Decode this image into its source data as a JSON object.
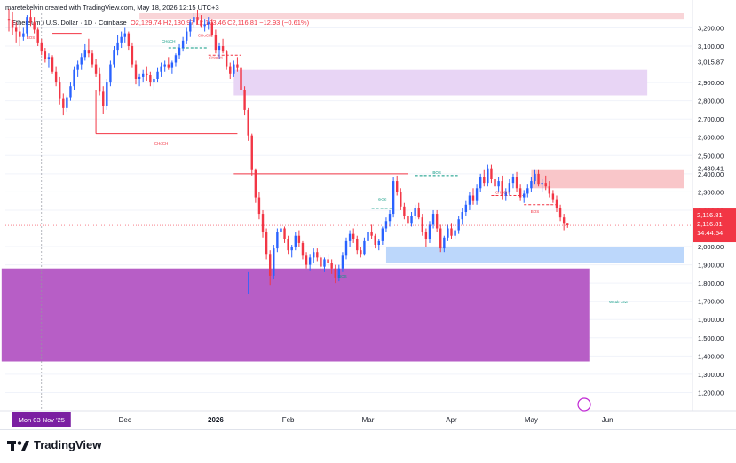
{
  "header": {
    "created_by": "maretekelvin created with TradingView.com, May 18, 2026 12:15 UTC+3",
    "symbol": "Ethereum / U.S. Dollar · 1D · Coinbase",
    "ohlc": "O2,129.74  H2,130.97  L2,103.46  C2,116.81  −12.93 (−0.61%)"
  },
  "footer": {
    "brand": "TradingView"
  },
  "chart_data": {
    "type": "candlestick",
    "y_ticks": [
      3200,
      3100,
      3015.87,
      2900,
      2800,
      2700,
      2600,
      2500,
      2430.41,
      2400,
      2300,
      2200,
      2116.81,
      2000,
      1900,
      1800,
      1700,
      1600,
      1500,
      1400,
      1300,
      1200
    ],
    "x_ticks": [
      "Dec",
      "2026",
      "Feb",
      "Mar",
      "Apr",
      "May",
      "Jun"
    ],
    "crosshair_date": "Mon 03 Nov '25",
    "last_price": 2116.81,
    "last_price_labels": [
      "2,116.81",
      "2,116.81",
      "14:44:54"
    ],
    "ylim": [
      1100,
      3280
    ],
    "start_date": "2025-10-20",
    "candles": [
      [
        3250,
        3305,
        3180,
        3240
      ],
      [
        3240,
        3290,
        3160,
        3200
      ],
      [
        3200,
        3230,
        3120,
        3180
      ],
      [
        3180,
        3220,
        3100,
        3150
      ],
      [
        3150,
        3200,
        3130,
        3170
      ],
      [
        3170,
        3270,
        3150,
        3260
      ],
      [
        3260,
        3300,
        3210,
        3230
      ],
      [
        3230,
        3260,
        3170,
        3190
      ],
      [
        3190,
        3200,
        3100,
        3120
      ],
      [
        3120,
        3140,
        3050,
        3070
      ],
      [
        3070,
        3090,
        3010,
        3030
      ],
      [
        3030,
        3060,
        2980,
        3040
      ],
      [
        3040,
        3050,
        2950,
        2960
      ],
      [
        2960,
        2990,
        2880,
        2900
      ],
      [
        2900,
        2930,
        2780,
        2810
      ],
      [
        2810,
        2840,
        2720,
        2760
      ],
      [
        2760,
        2830,
        2740,
        2820
      ],
      [
        2820,
        2900,
        2800,
        2880
      ],
      [
        2880,
        2990,
        2860,
        2970
      ],
      [
        2970,
        3020,
        2930,
        3000
      ],
      [
        3000,
        3060,
        2970,
        3040
      ],
      [
        3040,
        3110,
        3020,
        3080
      ],
      [
        3080,
        3140,
        3040,
        3060
      ],
      [
        3060,
        3080,
        2980,
        3000
      ],
      [
        3000,
        3030,
        2930,
        2950
      ],
      [
        2950,
        2980,
        2830,
        2850
      ],
      [
        2850,
        2880,
        2730,
        2770
      ],
      [
        2770,
        2920,
        2750,
        2900
      ],
      [
        2900,
        3020,
        2880,
        3000
      ],
      [
        3000,
        3100,
        2980,
        3080
      ],
      [
        3080,
        3160,
        3050,
        3120
      ],
      [
        3120,
        3180,
        3090,
        3150
      ],
      [
        3150,
        3200,
        3120,
        3170
      ],
      [
        3170,
        3180,
        3080,
        3100
      ],
      [
        3100,
        3120,
        2980,
        3000
      ],
      [
        3000,
        3020,
        2890,
        2920
      ],
      [
        2920,
        2950,
        2880,
        2930
      ],
      [
        2930,
        2970,
        2900,
        2950
      ],
      [
        2950,
        2990,
        2910,
        2940
      ],
      [
        2940,
        2960,
        2880,
        2900
      ],
      [
        2900,
        2930,
        2860,
        2920
      ],
      [
        2920,
        2980,
        2900,
        2960
      ],
      [
        2960,
        3010,
        2930,
        2990
      ],
      [
        2990,
        3020,
        2960,
        3000
      ],
      [
        3000,
        3040,
        2970,
        2980
      ],
      [
        2980,
        3020,
        2950,
        3010
      ],
      [
        3010,
        3060,
        2990,
        3050
      ],
      [
        3050,
        3110,
        3030,
        3090
      ],
      [
        3090,
        3150,
        3070,
        3130
      ],
      [
        3130,
        3200,
        3110,
        3180
      ],
      [
        3180,
        3250,
        3150,
        3230
      ],
      [
        3230,
        3280,
        3200,
        3260
      ],
      [
        3260,
        3300,
        3220,
        3240
      ],
      [
        3240,
        3270,
        3200,
        3210
      ],
      [
        3210,
        3250,
        3180,
        3220
      ],
      [
        3220,
        3260,
        3190,
        3230
      ],
      [
        3230,
        3250,
        3150,
        3160
      ],
      [
        3160,
        3190,
        3060,
        3080
      ],
      [
        3080,
        3120,
        3030,
        3100
      ],
      [
        3100,
        3140,
        3060,
        3070
      ],
      [
        3070,
        3080,
        2970,
        2990
      ],
      [
        2990,
        3010,
        2920,
        2950
      ],
      [
        2950,
        3020,
        2930,
        3000
      ],
      [
        3000,
        3040,
        2960,
        2980
      ],
      [
        2980,
        3000,
        2830,
        2860
      ],
      [
        2860,
        2880,
        2720,
        2750
      ],
      [
        2750,
        2760,
        2580,
        2610
      ],
      [
        2610,
        2620,
        2390,
        2420
      ],
      [
        2420,
        2430,
        2240,
        2270
      ],
      [
        2270,
        2300,
        2150,
        2180
      ],
      [
        2180,
        2200,
        2050,
        2080
      ],
      [
        2080,
        2100,
        1930,
        1960
      ],
      [
        1960,
        1980,
        1790,
        1840
      ],
      [
        1840,
        2010,
        1820,
        1990
      ],
      [
        1990,
        2100,
        1970,
        2080
      ],
      [
        2080,
        2130,
        2050,
        2100
      ],
      [
        2100,
        2110,
        2020,
        2040
      ],
      [
        2040,
        2060,
        1960,
        1980
      ],
      [
        1980,
        2010,
        1940,
        2000
      ],
      [
        2000,
        2080,
        1980,
        2060
      ],
      [
        2060,
        2090,
        2000,
        2020
      ],
      [
        2020,
        2030,
        1930,
        1950
      ],
      [
        1950,
        1970,
        1880,
        1900
      ],
      [
        1900,
        1960,
        1870,
        1940
      ],
      [
        1940,
        1990,
        1910,
        1970
      ],
      [
        1970,
        1990,
        1920,
        1940
      ],
      [
        1940,
        1950,
        1870,
        1890
      ],
      [
        1890,
        1940,
        1860,
        1930
      ],
      [
        1930,
        1960,
        1890,
        1910
      ],
      [
        1910,
        1930,
        1850,
        1880
      ],
      [
        1880,
        1900,
        1800,
        1830
      ],
      [
        1830,
        1900,
        1810,
        1880
      ],
      [
        1880,
        1970,
        1860,
        1950
      ],
      [
        1950,
        2050,
        1930,
        2030
      ],
      [
        2030,
        2090,
        2000,
        2070
      ],
      [
        2070,
        2100,
        2020,
        2040
      ],
      [
        2040,
        2060,
        1960,
        1980
      ],
      [
        1980,
        2000,
        1940,
        1960
      ],
      [
        1960,
        2050,
        1950,
        2030
      ],
      [
        2030,
        2100,
        2010,
        2080
      ],
      [
        2080,
        2120,
        2040,
        2060
      ],
      [
        2060,
        2070,
        1990,
        2010
      ],
      [
        2010,
        2040,
        1980,
        2030
      ],
      [
        2030,
        2110,
        2010,
        2100
      ],
      [
        2100,
        2160,
        2080,
        2140
      ],
      [
        2140,
        2200,
        2110,
        2180
      ],
      [
        2180,
        2380,
        2160,
        2360
      ],
      [
        2360,
        2390,
        2280,
        2300
      ],
      [
        2300,
        2320,
        2200,
        2220
      ],
      [
        2220,
        2240,
        2150,
        2170
      ],
      [
        2170,
        2200,
        2100,
        2130
      ],
      [
        2130,
        2190,
        2110,
        2170
      ],
      [
        2170,
        2230,
        2150,
        2210
      ],
      [
        2210,
        2240,
        2150,
        2160
      ],
      [
        2160,
        2180,
        2060,
        2080
      ],
      [
        2080,
        2100,
        2000,
        2040
      ],
      [
        2040,
        2140,
        2020,
        2120
      ],
      [
        2120,
        2200,
        2100,
        2180
      ],
      [
        2180,
        2200,
        2080,
        2100
      ],
      [
        2100,
        2120,
        1970,
        1990
      ],
      [
        1990,
        2060,
        1970,
        2050
      ],
      [
        2050,
        2120,
        2030,
        2100
      ],
      [
        2100,
        2130,
        2040,
        2060
      ],
      [
        2060,
        2100,
        2040,
        2090
      ],
      [
        2090,
        2170,
        2070,
        2150
      ],
      [
        2150,
        2210,
        2120,
        2190
      ],
      [
        2190,
        2250,
        2170,
        2230
      ],
      [
        2230,
        2300,
        2200,
        2280
      ],
      [
        2280,
        2320,
        2230,
        2250
      ],
      [
        2250,
        2340,
        2230,
        2320
      ],
      [
        2320,
        2400,
        2300,
        2380
      ],
      [
        2380,
        2420,
        2330,
        2350
      ],
      [
        2350,
        2450,
        2330,
        2430
      ],
      [
        2430,
        2450,
        2350,
        2370
      ],
      [
        2370,
        2400,
        2310,
        2330
      ],
      [
        2330,
        2380,
        2300,
        2360
      ],
      [
        2360,
        2390,
        2260,
        2280
      ],
      [
        2280,
        2320,
        2250,
        2300
      ],
      [
        2300,
        2370,
        2280,
        2350
      ],
      [
        2350,
        2400,
        2320,
        2380
      ],
      [
        2380,
        2410,
        2300,
        2320
      ],
      [
        2320,
        2340,
        2250,
        2270
      ],
      [
        2270,
        2310,
        2240,
        2290
      ],
      [
        2290,
        2340,
        2270,
        2320
      ],
      [
        2320,
        2380,
        2300,
        2360
      ],
      [
        2360,
        2420,
        2340,
        2400
      ],
      [
        2400,
        2420,
        2330,
        2340
      ],
      [
        2340,
        2370,
        2300,
        2350
      ],
      [
        2350,
        2390,
        2310,
        2330
      ],
      [
        2330,
        2360,
        2270,
        2290
      ],
      [
        2290,
        2310,
        2240,
        2260
      ],
      [
        2260,
        2280,
        2190,
        2210
      ],
      [
        2210,
        2230,
        2140,
        2160
      ],
      [
        2160,
        2180,
        2090,
        2130
      ],
      [
        2130,
        2131,
        2103,
        2117
      ]
    ]
  },
  "zones": [
    {
      "name": "demand-zone-large",
      "y1": 1370,
      "y2": 1880,
      "color": "#b75ec6",
      "t1": -2,
      "t2": 160
    },
    {
      "name": "supply-zone-purple",
      "y1": 2830,
      "y2": 2970,
      "color": "#e8d5f5",
      "t1": 62,
      "t2": 176
    },
    {
      "name": "supply-zone-red",
      "y1": 2320,
      "y2": 2420,
      "color": "#f9c6c9",
      "t1": 144,
      "t2": 186
    },
    {
      "name": "demand-zone-blue",
      "y1": 1910,
      "y2": 2000,
      "color": "#bcd7fb",
      "t1": 104,
      "t2": 186
    },
    {
      "name": "top-red-zone",
      "y1": 3250,
      "y2": 3280,
      "color": "#f9d5d8",
      "t1": 36,
      "t2": 186
    }
  ],
  "annotations": [
    {
      "text": "CHoCH",
      "t": 42,
      "y": 2560,
      "color": "#f23645"
    },
    {
      "text": "CHoCH",
      "t": 44,
      "y": 3120,
      "color": "#089981"
    },
    {
      "text": "CHoCH",
      "t": 57,
      "y": 3030,
      "color": "#f23645"
    },
    {
      "text": "CHoCH",
      "t": 54,
      "y": 3150,
      "color": "#f23645"
    },
    {
      "text": "BOS",
      "t": 6,
      "y": 3140,
      "color": "#f23645"
    },
    {
      "text": "BOS",
      "t": 92,
      "y": 1830,
      "color": "#089981"
    },
    {
      "text": "BOS",
      "t": 103,
      "y": 2250,
      "color": "#089981"
    },
    {
      "text": "BOS",
      "t": 118,
      "y": 2400,
      "color": "#089981"
    },
    {
      "text": "CHoCH",
      "t": 136,
      "y": 2290,
      "color": "#f23645"
    },
    {
      "text": "BOS",
      "t": 145,
      "y": 2185,
      "color": "#f23645"
    },
    {
      "text": "Weak Low",
      "t": 168,
      "y": 1690,
      "color": "#089981"
    }
  ]
}
